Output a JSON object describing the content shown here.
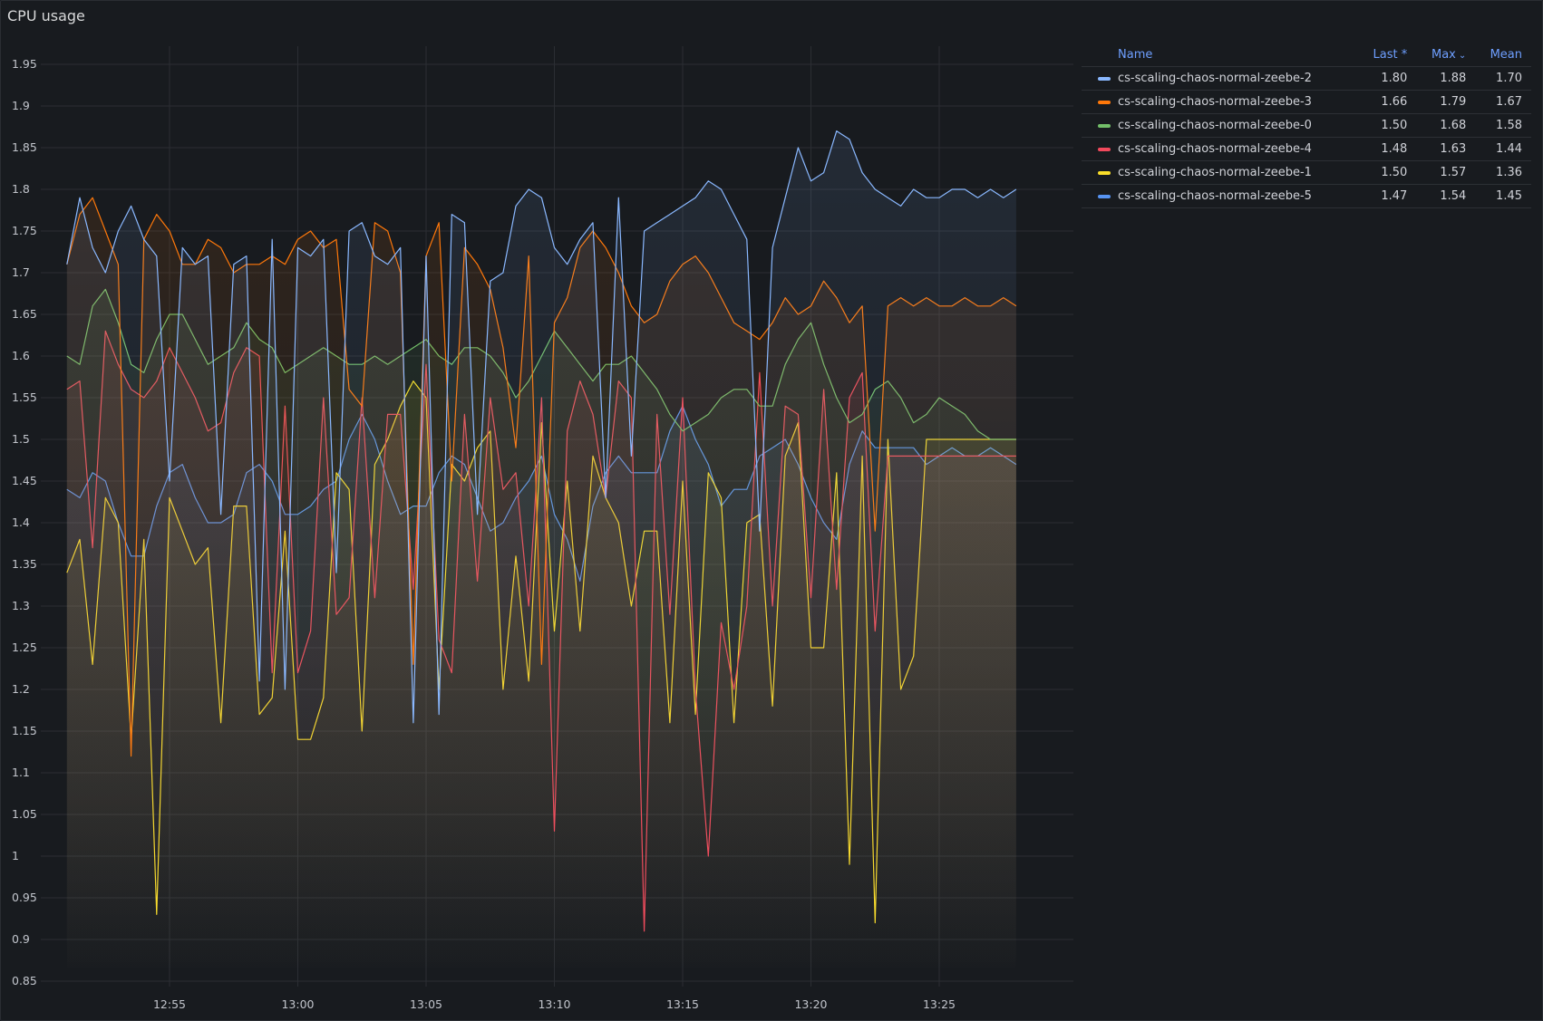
{
  "panel": {
    "title": "CPU usage"
  },
  "legend": {
    "headers": {
      "name": "Name",
      "last": "Last *",
      "max": "Max",
      "max_sort": "⌄",
      "mean": "Mean"
    },
    "rows": [
      {
        "name": "cs-scaling-chaos-normal-zeebe-2",
        "color": "#8ab8ff",
        "last": "1.80",
        "max": "1.88",
        "mean": "1.70"
      },
      {
        "name": "cs-scaling-chaos-normal-zeebe-3",
        "color": "#ff780a",
        "last": "1.66",
        "max": "1.79",
        "mean": "1.67"
      },
      {
        "name": "cs-scaling-chaos-normal-zeebe-0",
        "color": "#73bf69",
        "last": "1.50",
        "max": "1.68",
        "mean": "1.58"
      },
      {
        "name": "cs-scaling-chaos-normal-zeebe-4",
        "color": "#f2495c",
        "last": "1.48",
        "max": "1.63",
        "mean": "1.44"
      },
      {
        "name": "cs-scaling-chaos-normal-zeebe-1",
        "color": "#fade2a",
        "last": "1.50",
        "max": "1.57",
        "mean": "1.36"
      },
      {
        "name": "cs-scaling-chaos-normal-zeebe-5",
        "color": "#5794f2",
        "last": "1.47",
        "max": "1.54",
        "mean": "1.45"
      }
    ]
  },
  "chart_data": {
    "type": "line",
    "title": "CPU usage",
    "ylim": [
      0.85,
      1.95
    ],
    "yticks": [
      "1.95",
      "1.9",
      "1.85",
      "1.8",
      "1.75",
      "1.7",
      "1.65",
      "1.6",
      "1.55",
      "1.5",
      "1.45",
      "1.4",
      "1.35",
      "1.3",
      "1.25",
      "1.2",
      "1.15",
      "1.1",
      "1.05",
      "1",
      "0.95",
      "0.9",
      "0.85"
    ],
    "xticks": [
      "12:55",
      "13:00",
      "13:05",
      "13:10",
      "13:15",
      "13:20",
      "13:25"
    ],
    "x": [
      "12:51",
      "12:51:30",
      "12:52",
      "12:52:30",
      "12:53",
      "12:53:30",
      "12:54",
      "12:54:30",
      "12:55",
      "12:55:30",
      "12:56",
      "12:56:30",
      "12:57",
      "12:57:30",
      "12:58",
      "12:58:30",
      "12:59",
      "12:59:30",
      "13:00",
      "13:00:30",
      "13:01",
      "13:01:30",
      "13:02",
      "13:02:30",
      "13:03",
      "13:03:30",
      "13:04",
      "13:04:30",
      "13:05",
      "13:05:30",
      "13:06",
      "13:06:30",
      "13:07",
      "13:07:30",
      "13:08",
      "13:08:30",
      "13:09",
      "13:09:30",
      "13:10",
      "13:10:30",
      "13:11",
      "13:11:30",
      "13:12",
      "13:12:30",
      "13:13",
      "13:13:30",
      "13:14",
      "13:14:30",
      "13:15",
      "13:15:30",
      "13:16",
      "13:16:30",
      "13:17",
      "13:17:30",
      "13:18",
      "13:18:30",
      "13:19",
      "13:19:30",
      "13:20",
      "13:20:30",
      "13:21",
      "13:21:30",
      "13:22",
      "13:22:30",
      "13:23",
      "13:23:30",
      "13:24",
      "13:24:30",
      "13:25",
      "13:25:30",
      "13:26",
      "13:26:30",
      "13:27",
      "13:27:30",
      "13:28"
    ],
    "grid": true,
    "legend_position": "right",
    "series": [
      {
        "name": "cs-scaling-chaos-normal-zeebe-2",
        "color": "#8ab8ff",
        "values": [
          1.71,
          1.79,
          1.73,
          1.7,
          1.75,
          1.78,
          1.74,
          1.72,
          1.45,
          1.73,
          1.71,
          1.72,
          1.41,
          1.71,
          1.72,
          1.21,
          1.74,
          1.2,
          1.73,
          1.72,
          1.74,
          1.34,
          1.75,
          1.76,
          1.72,
          1.71,
          1.73,
          1.16,
          1.72,
          1.17,
          1.77,
          1.76,
          1.41,
          1.69,
          1.7,
          1.78,
          1.8,
          1.79,
          1.73,
          1.71,
          1.74,
          1.76,
          1.43,
          1.79,
          1.48,
          1.75,
          1.76,
          1.77,
          1.78,
          1.79,
          1.81,
          1.8,
          1.77,
          1.74,
          1.39,
          1.73,
          1.79,
          1.85,
          1.81,
          1.82,
          1.87,
          1.86,
          1.82,
          1.8,
          1.79,
          1.78,
          1.8,
          1.79,
          1.79,
          1.8,
          1.8,
          1.79,
          1.8,
          1.79,
          1.8
        ]
      },
      {
        "name": "cs-scaling-chaos-normal-zeebe-3",
        "color": "#ff780a",
        "values": [
          1.71,
          1.77,
          1.79,
          1.75,
          1.71,
          1.12,
          1.74,
          1.77,
          1.75,
          1.71,
          1.71,
          1.74,
          1.73,
          1.7,
          1.71,
          1.71,
          1.72,
          1.71,
          1.74,
          1.75,
          1.73,
          1.74,
          1.56,
          1.54,
          1.76,
          1.75,
          1.7,
          1.23,
          1.72,
          1.76,
          1.45,
          1.73,
          1.71,
          1.68,
          1.61,
          1.49,
          1.72,
          1.23,
          1.64,
          1.67,
          1.73,
          1.75,
          1.73,
          1.7,
          1.66,
          1.64,
          1.65,
          1.69,
          1.71,
          1.72,
          1.7,
          1.67,
          1.64,
          1.63,
          1.62,
          1.64,
          1.67,
          1.65,
          1.66,
          1.69,
          1.67,
          1.64,
          1.66,
          1.39,
          1.66,
          1.67,
          1.66,
          1.67,
          1.66,
          1.66,
          1.67,
          1.66,
          1.66,
          1.67,
          1.66
        ]
      },
      {
        "name": "cs-scaling-chaos-normal-zeebe-0",
        "color": "#73bf69",
        "values": [
          1.6,
          1.59,
          1.66,
          1.68,
          1.64,
          1.59,
          1.58,
          1.62,
          1.65,
          1.65,
          1.62,
          1.59,
          1.6,
          1.61,
          1.64,
          1.62,
          1.61,
          1.58,
          1.59,
          1.6,
          1.61,
          1.6,
          1.59,
          1.59,
          1.6,
          1.59,
          1.6,
          1.61,
          1.62,
          1.6,
          1.59,
          1.61,
          1.61,
          1.6,
          1.58,
          1.55,
          1.57,
          1.6,
          1.63,
          1.61,
          1.59,
          1.57,
          1.59,
          1.59,
          1.6,
          1.58,
          1.56,
          1.53,
          1.51,
          1.52,
          1.53,
          1.55,
          1.56,
          1.56,
          1.54,
          1.54,
          1.59,
          1.62,
          1.64,
          1.59,
          1.55,
          1.52,
          1.53,
          1.56,
          1.57,
          1.55,
          1.52,
          1.53,
          1.55,
          1.54,
          1.53,
          1.51,
          1.5,
          1.5,
          1.5
        ]
      },
      {
        "name": "cs-scaling-chaos-normal-zeebe-4",
        "color": "#f2495c",
        "values": [
          1.56,
          1.57,
          1.37,
          1.63,
          1.59,
          1.56,
          1.55,
          1.57,
          1.61,
          1.58,
          1.55,
          1.51,
          1.52,
          1.58,
          1.61,
          1.6,
          1.22,
          1.54,
          1.22,
          1.27,
          1.55,
          1.29,
          1.31,
          1.55,
          1.31,
          1.53,
          1.53,
          1.32,
          1.59,
          1.26,
          1.22,
          1.53,
          1.33,
          1.55,
          1.44,
          1.46,
          1.3,
          1.55,
          1.03,
          1.51,
          1.57,
          1.53,
          1.43,
          1.57,
          1.55,
          0.91,
          1.53,
          1.29,
          1.55,
          1.2,
          1.0,
          1.28,
          1.2,
          1.3,
          1.58,
          1.3,
          1.54,
          1.53,
          1.31,
          1.56,
          1.32,
          1.55,
          1.58,
          1.27,
          1.48,
          1.48,
          1.48,
          1.48,
          1.48,
          1.48,
          1.48,
          1.48,
          1.48,
          1.48,
          1.48
        ]
      },
      {
        "name": "cs-scaling-chaos-normal-zeebe-1",
        "color": "#fade2a",
        "values": [
          1.34,
          1.38,
          1.23,
          1.43,
          1.4,
          1.14,
          1.38,
          0.93,
          1.43,
          1.39,
          1.35,
          1.37,
          1.16,
          1.42,
          1.42,
          1.17,
          1.19,
          1.39,
          1.14,
          1.14,
          1.19,
          1.46,
          1.44,
          1.15,
          1.47,
          1.5,
          1.54,
          1.57,
          1.55,
          1.2,
          1.47,
          1.45,
          1.49,
          1.51,
          1.2,
          1.36,
          1.21,
          1.52,
          1.27,
          1.45,
          1.27,
          1.48,
          1.43,
          1.4,
          1.3,
          1.39,
          1.39,
          1.16,
          1.45,
          1.17,
          1.46,
          1.43,
          1.16,
          1.4,
          1.41,
          1.18,
          1.48,
          1.52,
          1.25,
          1.25,
          1.46,
          0.99,
          1.48,
          0.92,
          1.5,
          1.2,
          1.24,
          1.5,
          1.5,
          1.5,
          1.5,
          1.5,
          1.5,
          1.5,
          1.5
        ]
      },
      {
        "name": "cs-scaling-chaos-normal-zeebe-5",
        "color": "#5794f2",
        "values": [
          1.44,
          1.43,
          1.46,
          1.45,
          1.4,
          1.36,
          1.36,
          1.42,
          1.46,
          1.47,
          1.43,
          1.4,
          1.4,
          1.41,
          1.46,
          1.47,
          1.45,
          1.41,
          1.41,
          1.42,
          1.44,
          1.45,
          1.5,
          1.53,
          1.5,
          1.45,
          1.41,
          1.42,
          1.42,
          1.46,
          1.48,
          1.47,
          1.43,
          1.39,
          1.4,
          1.43,
          1.45,
          1.48,
          1.41,
          1.38,
          1.33,
          1.42,
          1.46,
          1.48,
          1.46,
          1.46,
          1.46,
          1.51,
          1.54,
          1.5,
          1.47,
          1.42,
          1.44,
          1.44,
          1.48,
          1.49,
          1.5,
          1.47,
          1.43,
          1.4,
          1.38,
          1.47,
          1.51,
          1.49,
          1.49,
          1.49,
          1.49,
          1.47,
          1.48,
          1.49,
          1.48,
          1.48,
          1.49,
          1.48,
          1.47
        ]
      }
    ]
  }
}
